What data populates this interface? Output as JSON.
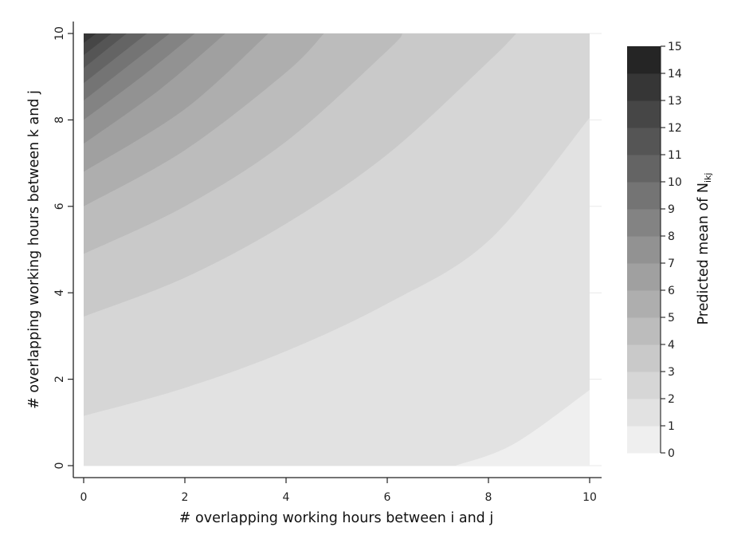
{
  "chart_data": {
    "type": "contour",
    "xlabel": "# overlapping working hours between i and j",
    "ylabel": "# overlapping working hours between k and j",
    "colorbar_label": "Predicted mean of N",
    "colorbar_label_subscript": "ikj",
    "x_ticks": [
      "0",
      "2",
      "4",
      "6",
      "8",
      "10"
    ],
    "y_ticks": [
      "0",
      "2",
      "4",
      "6",
      "8",
      "10"
    ],
    "xlim": [
      0,
      10
    ],
    "ylim": [
      0,
      10
    ],
    "colorbar_ticks": [
      "0",
      "1",
      "2",
      "3",
      "4",
      "5",
      "6",
      "7",
      "8",
      "9",
      "10",
      "11",
      "12",
      "13",
      "14",
      "15"
    ],
    "levels": [
      0,
      1,
      2,
      3,
      4,
      5,
      6,
      7,
      8,
      9,
      10,
      11,
      12,
      13,
      14,
      15
    ],
    "level_colors": [
      "#efefef",
      "#e2e2e2",
      "#d6d6d6",
      "#c9c9c9",
      "#bcbcbc",
      "#aeaeae",
      "#a0a0a0",
      "#929292",
      "#838383",
      "#747474",
      "#646464",
      "#555555",
      "#464646",
      "#363636",
      "#252525"
    ],
    "contour_lines": [
      {
        "level": 2,
        "points": [
          [
            7.35,
            0
          ],
          [
            8.5,
            0.5
          ],
          [
            10,
            1.75
          ]
        ]
      },
      {
        "level": 3,
        "points": [
          [
            0,
            1.15
          ],
          [
            2,
            1.8
          ],
          [
            4,
            2.65
          ],
          [
            6,
            3.75
          ],
          [
            8,
            5.2
          ],
          [
            10,
            8.05
          ]
        ]
      },
      {
        "level": 4,
        "points": [
          [
            0,
            3.45
          ],
          [
            2,
            4.35
          ],
          [
            4,
            5.6
          ],
          [
            6,
            7.2
          ],
          [
            8,
            9.35
          ],
          [
            8.55,
            10
          ]
        ]
      },
      {
        "level": 5,
        "points": [
          [
            0,
            4.9
          ],
          [
            2,
            6.0
          ],
          [
            4,
            7.5
          ],
          [
            6,
            9.6
          ],
          [
            6.3,
            10
          ]
        ]
      },
      {
        "level": 6,
        "points": [
          [
            0,
            6.0
          ],
          [
            2,
            7.3
          ],
          [
            4,
            9.1
          ],
          [
            4.75,
            10
          ]
        ]
      },
      {
        "level": 7,
        "points": [
          [
            0,
            6.8
          ],
          [
            2,
            8.25
          ],
          [
            3.65,
            10
          ]
        ]
      },
      {
        "level": 8,
        "points": [
          [
            0,
            7.45
          ],
          [
            1.5,
            8.7
          ],
          [
            2.8,
            10
          ]
        ]
      },
      {
        "level": 9,
        "points": [
          [
            0,
            8.0
          ],
          [
            1.2,
            9.05
          ],
          [
            2.2,
            10
          ]
        ]
      },
      {
        "level": 10,
        "points": [
          [
            0,
            8.45
          ],
          [
            1.7,
            10
          ]
        ]
      },
      {
        "level": 11,
        "points": [
          [
            0,
            8.85
          ],
          [
            1.25,
            10
          ]
        ]
      },
      {
        "level": 12,
        "points": [
          [
            0,
            9.2
          ],
          [
            0.85,
            10
          ]
        ]
      },
      {
        "level": 13,
        "points": [
          [
            0,
            9.5
          ],
          [
            0.55,
            10
          ]
        ]
      },
      {
        "level": 14,
        "points": [
          [
            0,
            9.78
          ],
          [
            0.25,
            10
          ]
        ]
      }
    ]
  }
}
